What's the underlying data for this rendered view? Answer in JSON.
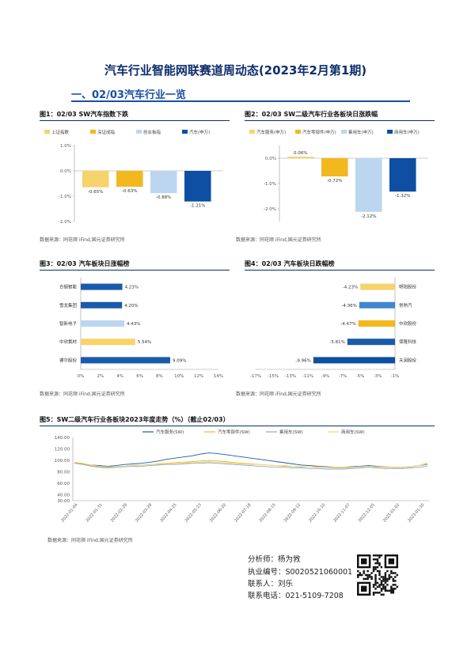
{
  "doc_title": "汽车行业智能网联赛道周动态(2023年2月第1期)",
  "section_heading": "一、02/03汽车行业一览",
  "source_text": "数据来源：同花顺 iFind,国元证券研究所",
  "figures": {
    "fig1_title": "图1：02/03 SW汽车指数下跌",
    "fig2_title": "图2：02/03 SW二级汽车行业各板块日涨跌幅",
    "fig3_title": "图3：02/03 汽车板块日涨幅榜",
    "fig4_title": "图4：02/03 汽车板块日跌幅榜",
    "fig5_title": "图5：SW二级汽车行业各板块2023年度走势（%）（截止02/03）"
  },
  "analyst": {
    "name_line": "分析师：杨为敩",
    "cert_line": "执业编号：S0020521060001",
    "contact_line": "联系人：刘乐",
    "phone_line": "联系电话：021-5109-7208"
  },
  "chart_data": [
    {
      "id": "fig1",
      "type": "bar",
      "series": [
        {
          "name": "上证指数",
          "values": [
            -0.65
          ],
          "color": "#f7d36b"
        },
        {
          "name": "深证成指",
          "values": [
            -0.63
          ],
          "color": "#f2b81e"
        },
        {
          "name": "创业板指",
          "values": [
            -0.88
          ],
          "color": "#bcd6ef"
        },
        {
          "name": "汽车(申万)",
          "values": [
            -1.21
          ],
          "color": "#0e4ea3"
        }
      ],
      "data_labels": [
        "-0.65%",
        "-0.63%",
        "-0.88%",
        "-1.21%"
      ],
      "ylim": [
        -2.0,
        1.0
      ],
      "yticks": [
        "1.0%",
        "0.0%",
        "-1.0%",
        "-2.0%"
      ],
      "legend": "top"
    },
    {
      "id": "fig2",
      "type": "bar",
      "series": [
        {
          "name": "汽车服务(申万)",
          "values": [
            0.06
          ],
          "color": "#f7d36b"
        },
        {
          "name": "汽车零部件(申万)",
          "values": [
            -0.72
          ],
          "color": "#f2b81e"
        },
        {
          "name": "乘用车(申万)",
          "values": [
            -2.12
          ],
          "color": "#bcd6ef"
        },
        {
          "name": "商用车(申万)",
          "values": [
            -1.32
          ],
          "color": "#0e4ea3"
        }
      ],
      "data_labels": [
        "0.06%",
        "-0.72%",
        "-2.12%",
        "-1.32%"
      ],
      "ylim": [
        -2.5,
        0.5
      ],
      "yticks": [
        "0.0%",
        "-1.0%",
        "-2.0%"
      ],
      "legend": "top"
    },
    {
      "id": "fig3",
      "type": "bar",
      "orientation": "horizontal",
      "categories": [
        "合锻智能",
        "雪龙集团",
        "智新电子",
        "中欣氟材",
        "德尔股份"
      ],
      "values": [
        4.23,
        4.2,
        4.43,
        5.54,
        9.09
      ],
      "data_labels": [
        "4.23%",
        "4.20%",
        "4.43%",
        "5.54%",
        "9.09%"
      ],
      "colors": [
        "#1a5aab",
        "#1a5aab",
        "#bcd6ef",
        "#f7d36b",
        "#1a5aab"
      ],
      "xlim": [
        0,
        14
      ],
      "xticks": [
        "0%",
        "2%",
        "4%",
        "6%",
        "8%",
        "10%",
        "12%",
        "14%"
      ]
    },
    {
      "id": "fig4",
      "type": "bar",
      "orientation": "horizontal",
      "categories": [
        "明阳股份",
        "常熟汽",
        "中欣股份",
        "保隆科技",
        "天润股份"
      ],
      "values": [
        -4.23,
        -4.36,
        -4.47,
        -5.81,
        -9.96
      ],
      "data_labels": [
        "-4.23%",
        "-4.36%",
        "-4.47%",
        "-5.81%",
        "-9.96%"
      ],
      "colors": [
        "#f7d36b",
        "#3f87d0",
        "#f2b81e",
        "#1a5aab",
        "#0e4ea3"
      ],
      "xlim": [
        -17,
        0
      ],
      "xticks": [
        "-17%",
        "-15%",
        "-13%",
        "-11%",
        "-9%",
        "-7%",
        "-5%",
        "-3%",
        "-1%"
      ]
    },
    {
      "id": "fig5",
      "type": "line",
      "series": [
        {
          "name": "汽车服务(SW)",
          "color": "#1a5aab",
          "values": [
            96,
            94,
            92,
            91,
            90,
            91,
            93,
            94,
            95,
            97,
            99,
            102,
            104,
            106,
            108,
            111,
            113,
            112,
            110,
            108,
            106,
            104,
            102,
            100,
            98,
            96,
            94,
            92,
            91,
            90,
            89,
            88,
            88,
            89,
            90,
            91,
            90,
            89,
            88,
            88,
            89,
            91,
            93
          ]
        },
        {
          "name": "汽车零部件(SW)",
          "color": "#f2b81e",
          "values": [
            96,
            94,
            91,
            89,
            88,
            89,
            90,
            91,
            92,
            93,
            94,
            95,
            96,
            97,
            98,
            99,
            100,
            99,
            98,
            96,
            95,
            94,
            93,
            92,
            91,
            90,
            90,
            89,
            89,
            88,
            88,
            87,
            87,
            88,
            89,
            90,
            89,
            88,
            88,
            88,
            89,
            91,
            96
          ]
        },
        {
          "name": "乘用车(SW)",
          "color": "#7fa9d8",
          "values": [
            95,
            93,
            90,
            88,
            87,
            88,
            89,
            90,
            90,
            91,
            92,
            93,
            93,
            94,
            95,
            95,
            96,
            95,
            94,
            93,
            92,
            91,
            90,
            89,
            88,
            88,
            87,
            87,
            86,
            86,
            85,
            85,
            85,
            86,
            87,
            88,
            87,
            86,
            86,
            86,
            87,
            88,
            90
          ]
        },
        {
          "name": "商用车(SW)",
          "color": "#f7d36b",
          "values": [
            97,
            95,
            92,
            90,
            89,
            89,
            90,
            91,
            92,
            93,
            93,
            94,
            95,
            96,
            96,
            97,
            98,
            97,
            96,
            95,
            94,
            93,
            93,
            92,
            91,
            91,
            90,
            90,
            89,
            89,
            88,
            88,
            88,
            88,
            89,
            90,
            89,
            89,
            88,
            88,
            89,
            91,
            94
          ]
        }
      ],
      "ylim": [
        30,
        140
      ],
      "yticks": [
        "140.00",
        "120.00",
        "100.00",
        "80.00",
        "60.00",
        "40.00",
        "30.00"
      ],
      "x_tick_labels": [
        "2022-01-04",
        "2022-01-31",
        "2022-02-28",
        "2022-03-28",
        "2022-04-25",
        "2022-05-23",
        "2022-06-20",
        "2022-07-18",
        "2022-08-15",
        "2022-09-12",
        "2022-10-10",
        "2022-11-07",
        "2022-12-05",
        "2023-01-02",
        "2023-01-30"
      ],
      "legend": "top"
    }
  ]
}
